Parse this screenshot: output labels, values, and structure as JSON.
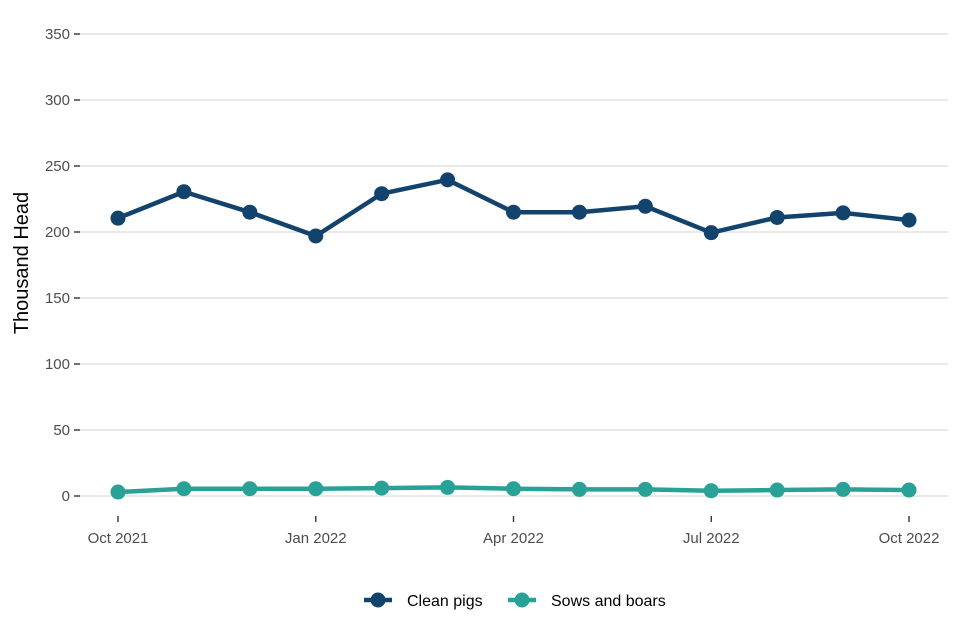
{
  "chart_data": {
    "type": "line",
    "title": "",
    "xlabel": "",
    "ylabel": "Thousand Head",
    "ylim": [
      0,
      350
    ],
    "yticks": [
      0,
      50,
      100,
      150,
      200,
      250,
      300,
      350
    ],
    "x": [
      "2021-10",
      "2021-11",
      "2021-12",
      "2022-01",
      "2022-02",
      "2022-03",
      "2022-04",
      "2022-05",
      "2022-06",
      "2022-07",
      "2022-08",
      "2022-09",
      "2022-10"
    ],
    "xtick_labels": [
      {
        "x": "2021-10",
        "label": "Oct 2021"
      },
      {
        "x": "2022-01",
        "label": "Jan 2022"
      },
      {
        "x": "2022-04",
        "label": "Apr 2022"
      },
      {
        "x": "2022-07",
        "label": "Jul 2022"
      },
      {
        "x": "2022-10",
        "label": "Oct 2022"
      }
    ],
    "grid": true,
    "legend_position": "bottom",
    "series": [
      {
        "name": "Clean pigs",
        "color": "#12436d",
        "values": [
          210.5,
          230.5,
          215,
          197,
          229,
          239.5,
          215,
          215,
          219.5,
          199.5,
          211,
          214.5,
          209
        ]
      },
      {
        "name": "Sows and boars",
        "color": "#28a197",
        "values": [
          3,
          5.5,
          5.5,
          5.5,
          6,
          6.5,
          5.5,
          5,
          5,
          4,
          4.5,
          5,
          4.5
        ]
      }
    ]
  }
}
